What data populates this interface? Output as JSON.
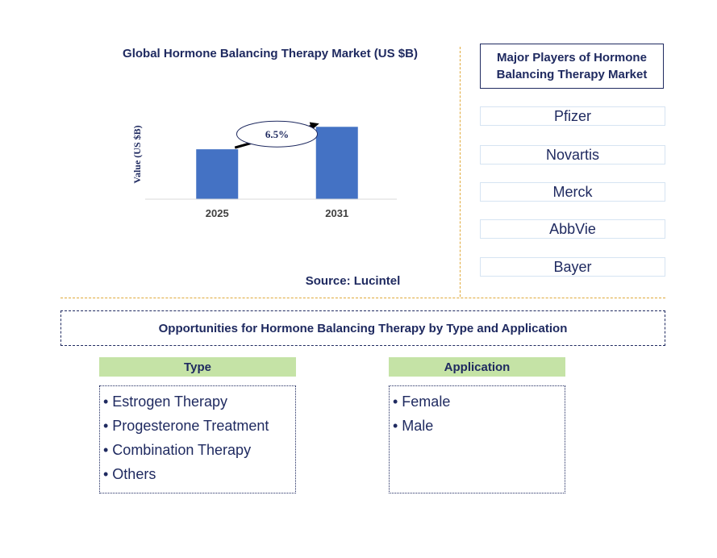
{
  "chart_data": {
    "type": "bar",
    "title": "Global Hormone Balancing Therapy Market (US $B)",
    "ylabel": "Value (US $B)",
    "xlabel": "",
    "categories": [
      "2025",
      "2031"
    ],
    "values": [
      1.0,
      1.45
    ],
    "ylim": [
      0,
      1.6
    ],
    "bar_color": "#4472c4",
    "annotation": "6.5%",
    "source": "Source: Lucintel"
  },
  "players": {
    "title": "Major Players of Hormone Balancing Therapy Market",
    "items": [
      "Pfizer",
      "Novartis",
      "Merck",
      "AbbVie",
      "Bayer"
    ]
  },
  "opportunities": {
    "title": "Opportunities for Hormone Balancing Therapy by Type and Application",
    "type_header": "Type",
    "type_items": [
      "• Estrogen Therapy",
      "• Progesterone Treatment",
      "• Combination Therapy",
      "• Others"
    ],
    "application_header": "Application",
    "application_items": [
      "• Female",
      "• Male"
    ]
  }
}
